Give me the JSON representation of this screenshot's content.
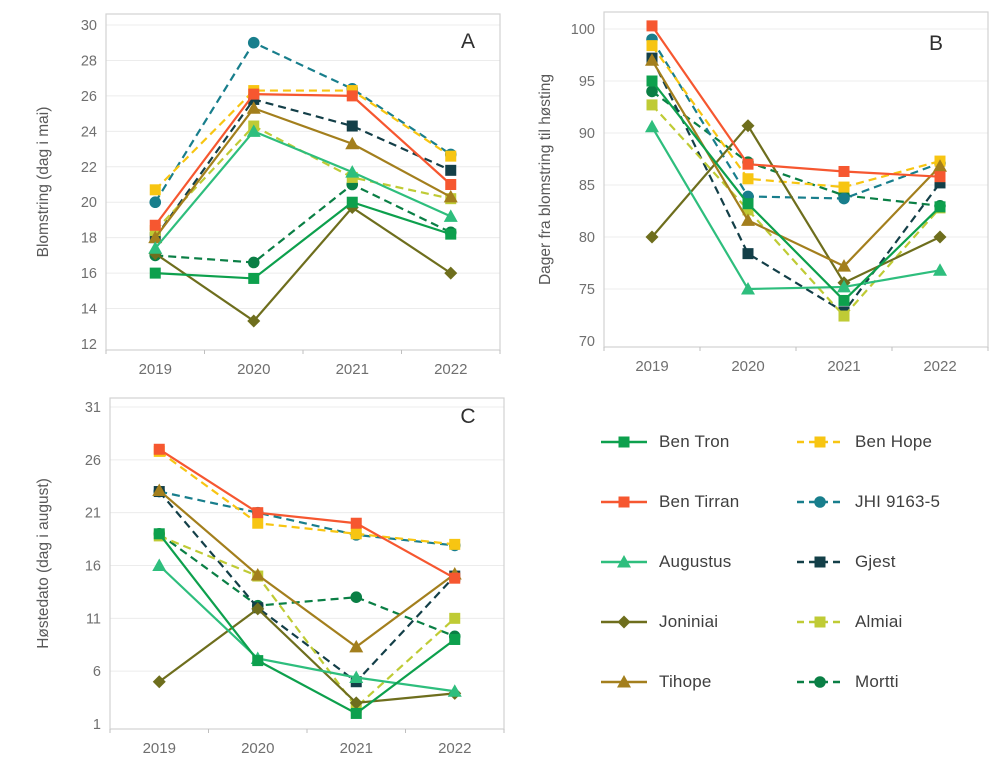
{
  "figure": {
    "background": "#ffffff",
    "panel_labels": [
      "A",
      "B",
      "C"
    ]
  },
  "cultivars": [
    {
      "name": "Ben Tron",
      "color": "#0DA04D",
      "marker": "square",
      "line": "solid"
    },
    {
      "name": "Ben Hope",
      "color": "#F7C512",
      "marker": "square",
      "line": "dashed"
    },
    {
      "name": "Ben Tirran",
      "color": "#F65730",
      "marker": "square",
      "line": "solid"
    },
    {
      "name": "JHI 9163-5",
      "color": "#187E8C",
      "marker": "circle",
      "line": "dashed"
    },
    {
      "name": "Augustus",
      "color": "#2EBE7D",
      "marker": "triangle",
      "line": "solid"
    },
    {
      "name": "Gjest",
      "color": "#133F48",
      "marker": "square",
      "line": "dashed"
    },
    {
      "name": "Joniniai",
      "color": "#6E6E1D",
      "marker": "diamond",
      "line": "solid"
    },
    {
      "name": "Almiai",
      "color": "#BFCB35",
      "marker": "square",
      "line": "dashed"
    },
    {
      "name": "Tihope",
      "color": "#A37F1D",
      "marker": "triangle",
      "line": "solid"
    },
    {
      "name": "Mortti",
      "color": "#0A7F45",
      "marker": "circle",
      "line": "dashed"
    }
  ],
  "legend": {
    "rows": [
      [
        "Ben Tron",
        "Ben Hope"
      ],
      [
        "Ben Tirran",
        "JHI 9163-5"
      ],
      [
        "Augustus",
        "Gjest"
      ],
      [
        "Joniniai",
        "Almiai"
      ],
      [
        "Tihope",
        "Mortti"
      ]
    ]
  },
  "draw_order": [
    "Mortti",
    "JHI 9163-5",
    "Gjest",
    "Ben Hope",
    "Almiai",
    "Joniniai",
    "Tihope",
    "Augustus",
    "Ben Tirran",
    "Ben Tron"
  ],
  "chart_data": [
    {
      "id": "A",
      "type": "line",
      "panel_label": "A",
      "ylabel": "Blomstring (dag i mai)",
      "categories": [
        "2019",
        "2020",
        "2021",
        "2022"
      ],
      "ylim": [
        12,
        30
      ],
      "yticks": [
        12,
        14,
        16,
        18,
        20,
        22,
        24,
        26,
        28,
        30
      ],
      "grid": true,
      "series": [
        {
          "name": "Ben Tron",
          "values": [
            16.0,
            15.7,
            20.0,
            18.2
          ]
        },
        {
          "name": "Ben Hope",
          "values": [
            20.7,
            26.3,
            26.3,
            22.6
          ]
        },
        {
          "name": "Ben Tirran",
          "values": [
            18.7,
            26.1,
            26.0,
            21.0
          ]
        },
        {
          "name": "JHI 9163-5",
          "values": [
            20.0,
            29.0,
            26.4,
            22.7
          ]
        },
        {
          "name": "Augustus",
          "values": [
            17.4,
            24.0,
            21.7,
            19.2
          ]
        },
        {
          "name": "Gjest",
          "values": [
            18.0,
            25.8,
            24.3,
            21.8
          ]
        },
        {
          "name": "Joniniai",
          "values": [
            17.1,
            13.3,
            19.7,
            16.0
          ]
        },
        {
          "name": "Almiai",
          "values": [
            18.4,
            24.3,
            21.4,
            20.2
          ]
        },
        {
          "name": "Tihope",
          "values": [
            18.0,
            25.3,
            23.3,
            20.3
          ]
        },
        {
          "name": "Mortti",
          "values": [
            17.0,
            16.6,
            21.0,
            18.3
          ]
        }
      ]
    },
    {
      "id": "B",
      "type": "line",
      "panel_label": "B",
      "ylabel": "Dager fra blomstring til høsting",
      "categories": [
        "2019",
        "2020",
        "2021",
        "2022"
      ],
      "ylim": [
        70,
        100
      ],
      "yticks": [
        70,
        75,
        80,
        85,
        90,
        95,
        100
      ],
      "grid": true,
      "series": [
        {
          "name": "Ben Tron",
          "values": [
            95.0,
            83.2,
            73.9,
            82.9
          ]
        },
        {
          "name": "Ben Hope",
          "values": [
            98.4,
            85.6,
            84.8,
            87.3
          ]
        },
        {
          "name": "Ben Tirran",
          "values": [
            100.3,
            87.0,
            86.3,
            85.8
          ]
        },
        {
          "name": "JHI 9163-5",
          "values": [
            99.0,
            83.9,
            83.7,
            87.1
          ]
        },
        {
          "name": "Augustus",
          "values": [
            90.6,
            75.0,
            75.2,
            76.8
          ]
        },
        {
          "name": "Gjest",
          "values": [
            97.2,
            78.4,
            72.8,
            85.2
          ]
        },
        {
          "name": "Joniniai",
          "values": [
            80.0,
            90.7,
            75.6,
            80.0
          ]
        },
        {
          "name": "Almiai",
          "values": [
            92.7,
            82.6,
            72.4,
            82.8
          ]
        },
        {
          "name": "Tihope",
          "values": [
            97.0,
            81.6,
            77.2,
            86.8
          ]
        },
        {
          "name": "Mortti",
          "values": [
            94.0,
            87.2,
            84.0,
            83.0
          ]
        }
      ]
    },
    {
      "id": "C",
      "type": "line",
      "panel_label": "C",
      "ylabel": "Høstedato (dag i august)",
      "categories": [
        "2019",
        "2020",
        "2021",
        "2022"
      ],
      "ylim": [
        1,
        31
      ],
      "yticks": [
        1,
        6,
        11,
        16,
        21,
        26,
        31
      ],
      "grid": true,
      "series": [
        {
          "name": "Ben Tron",
          "values": [
            19.0,
            7.0,
            2.0,
            9.0
          ]
        },
        {
          "name": "Ben Hope",
          "values": [
            26.8,
            20.0,
            19.0,
            18.0
          ]
        },
        {
          "name": "Ben Tirran",
          "values": [
            27.0,
            21.0,
            20.0,
            14.8
          ]
        },
        {
          "name": "JHI 9163-5",
          "values": [
            23.0,
            21.0,
            18.9,
            17.9
          ]
        },
        {
          "name": "Augustus",
          "values": [
            16.0,
            7.2,
            5.4,
            4.1
          ]
        },
        {
          "name": "Gjest",
          "values": [
            23.0,
            12.0,
            5.0,
            15.0
          ]
        },
        {
          "name": "Joniniai",
          "values": [
            5.0,
            11.9,
            3.0,
            3.9
          ]
        },
        {
          "name": "Almiai",
          "values": [
            18.8,
            15.0,
            2.6,
            11.0
          ]
        },
        {
          "name": "Tihope",
          "values": [
            23.1,
            15.1,
            8.3,
            15.2
          ]
        },
        {
          "name": "Mortti",
          "values": [
            19.0,
            12.2,
            13.0,
            9.3
          ]
        }
      ]
    }
  ]
}
